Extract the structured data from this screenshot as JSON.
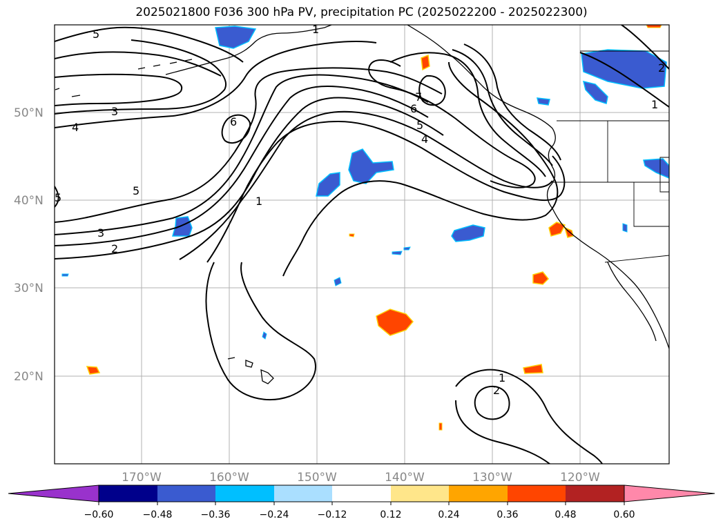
{
  "title": "2025021800 F036 300 hPa PV, precipitation PC (2025022200 - 2025022300)",
  "latitude_labels": [
    "50°N",
    "40°N",
    "30°N",
    "20°N"
  ],
  "longitude_labels": [
    "170°W",
    "160°W",
    "150°W",
    "140°W",
    "130°W",
    "120°W"
  ],
  "pv_contour_labels": [
    "5",
    "3",
    "4",
    "6",
    "5",
    "3",
    "2",
    "1",
    "7",
    "6",
    "5",
    "4",
    "5",
    "1",
    "1",
    "2",
    "1",
    "2"
  ],
  "colorbar": {
    "tick_labels": [
      "−0.60",
      "−0.48",
      "−0.36",
      "−0.24",
      "−0.12",
      "0.12",
      "0.24",
      "0.36",
      "0.48",
      "0.60"
    ],
    "colors": [
      "#9932cc",
      "#00008b",
      "#3a5bd0",
      "#00bfff",
      "#aadfff",
      "#ffffff",
      "#ffe68a",
      "#ffa500",
      "#ff4500",
      "#b22222",
      "#ff88aa"
    ]
  },
  "colors": {
    "pv_contour": "#000000",
    "coastline": "#000000",
    "gridline": "#b0b0b0",
    "axis_label": "#888888"
  }
}
